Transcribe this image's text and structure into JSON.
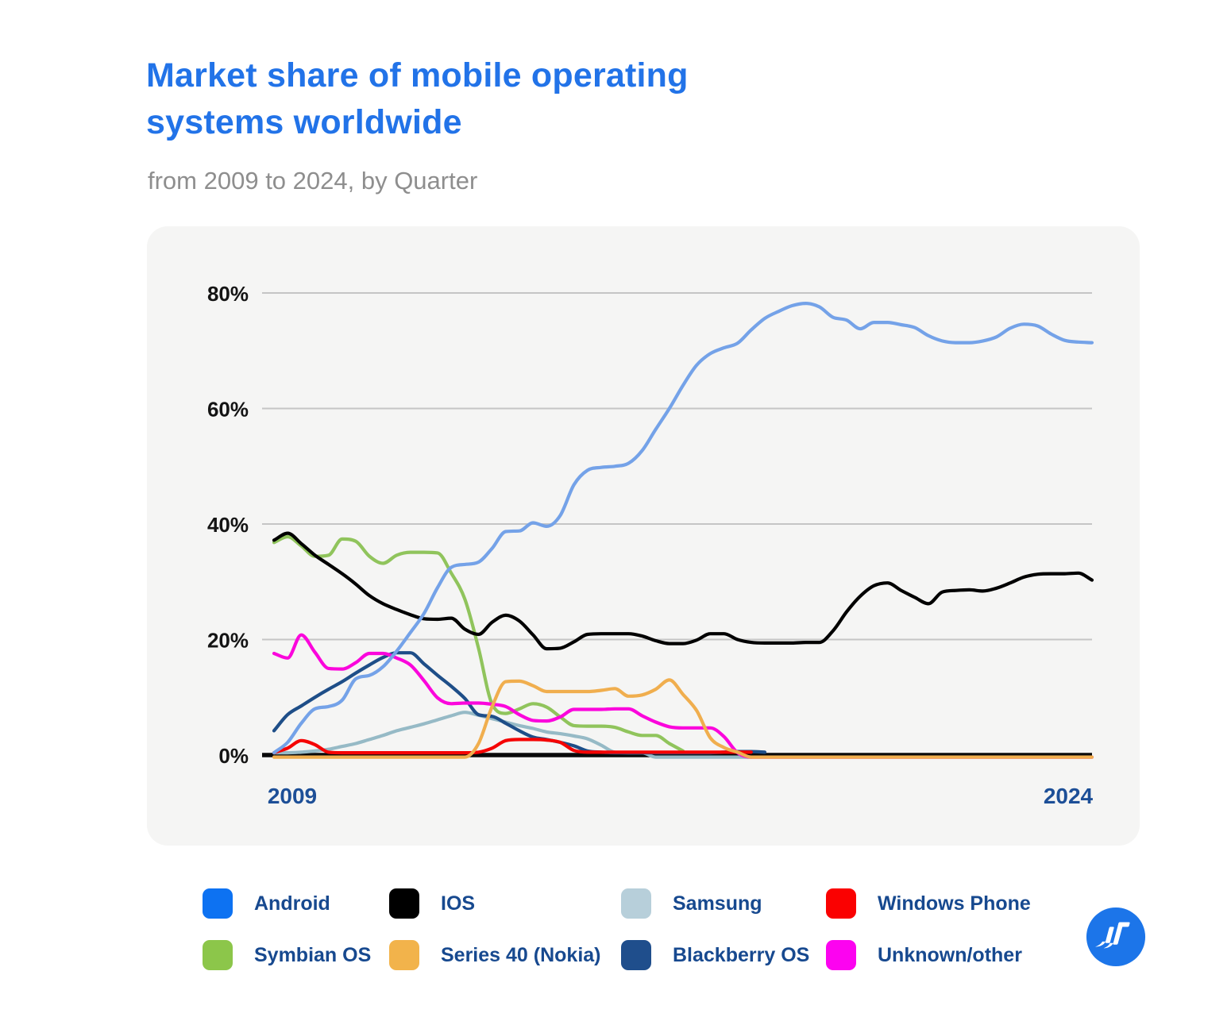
{
  "header": {
    "title_line1": "Market share of mobile operating",
    "title_line2": "systems worldwide",
    "subtitle": "from 2009 to 2024, by Quarter"
  },
  "chart_data": {
    "type": "line",
    "title": "Market share of mobile operating systems worldwide",
    "subtitle": "from 2009 to 2024, by Quarter",
    "x": {
      "unit": "quarter",
      "start": "2009 Q1",
      "end": "2024 Q1",
      "points_per_year": 4,
      "axis_labels": [
        "2009",
        "2024"
      ]
    },
    "y": {
      "unit": "percent market share",
      "ticks": [
        "80%",
        "60%",
        "40%",
        "20%",
        "0%"
      ],
      "tick_values": [
        80,
        60,
        40,
        20,
        0
      ],
      "ylim": [
        0,
        84
      ],
      "grid": true
    },
    "legend_position": "bottom",
    "series": [
      {
        "name": "Android",
        "line_color": "#74A2E8",
        "swatch_color": "#0D72F2",
        "values": [
          0.4,
          2.2,
          5.5,
          8.0,
          8.4,
          9.5,
          13.2,
          13.8,
          15.3,
          18.0,
          21.2,
          24.5,
          29.0,
          32.5,
          33.0,
          33.4,
          35.8,
          38.7,
          38.8,
          40.2,
          39.6,
          41.5,
          46.8,
          49.3,
          49.8,
          50.0,
          50.5,
          52.7,
          56.4,
          60.0,
          64.0,
          67.5,
          69.5,
          70.5,
          71.3,
          73.6,
          75.6,
          76.8,
          77.8,
          78.2,
          77.6,
          75.8,
          75.3,
          73.8,
          74.9,
          74.9,
          74.5,
          74.0,
          72.6,
          71.7,
          71.4,
          71.4,
          71.7,
          72.4,
          73.9,
          74.6,
          74.3,
          72.9,
          71.8,
          71.5,
          71.4
        ]
      },
      {
        "name": "IOS",
        "line_color": "#000000",
        "swatch_color": "#000000",
        "values": [
          37.2,
          38.4,
          36.6,
          34.6,
          33.0,
          31.4,
          29.6,
          27.6,
          26.2,
          25.2,
          24.3,
          23.6,
          23.5,
          23.7,
          21.8,
          20.9,
          23.0,
          24.2,
          23.2,
          20.8,
          18.4,
          18.5,
          19.6,
          20.9,
          21.0,
          21.0,
          21.0,
          20.6,
          19.8,
          19.3,
          19.3,
          19.9,
          21.0,
          21.0,
          20.0,
          19.5,
          19.4,
          19.4,
          19.4,
          19.5,
          19.5,
          21.5,
          24.8,
          27.5,
          29.3,
          29.8,
          28.5,
          27.3,
          26.2,
          28.2,
          28.5,
          28.6,
          28.4,
          28.9,
          29.8,
          30.8,
          31.3,
          31.4,
          31.4,
          31.5,
          30.3
        ]
      },
      {
        "name": "Samsung",
        "line_color": "#96BAC6",
        "swatch_color": "#B7CFDA",
        "values": [
          0.4,
          0.4,
          0.5,
          0.7,
          1.0,
          1.5,
          2.0,
          2.7,
          3.4,
          4.2,
          4.8,
          5.4,
          6.1,
          6.8,
          7.4,
          6.9,
          6.3,
          5.7,
          5.1,
          4.6,
          4.0,
          3.7,
          3.3,
          2.8,
          1.7,
          0.5,
          0.4,
          0.4,
          0.2,
          0.2,
          0.2,
          0.2,
          0.1,
          0.1,
          0.1,
          0.1
        ]
      },
      {
        "name": "Windows Phone",
        "line_color": "#F50404",
        "swatch_color": "#FA0101",
        "values": [
          0.4,
          1.2,
          2.5,
          1.8,
          0.5,
          0.4,
          0.4,
          0.4,
          0.4,
          0.4,
          0.4,
          0.4,
          0.4,
          0.4,
          0.4,
          0.5,
          1.2,
          2.5,
          2.7,
          2.7,
          2.6,
          2.2,
          0.8,
          0.5,
          0.5,
          0.5,
          0.5,
          0.5,
          0.5,
          0.5,
          0.5,
          0.5,
          0.5,
          0.5,
          0.5,
          0.5
        ]
      },
      {
        "name": "Symbian OS",
        "line_color": "#90C45C",
        "swatch_color": "#8CC64A",
        "values": [
          36.8,
          37.8,
          36.2,
          34.4,
          34.6,
          37.4,
          37.0,
          34.4,
          33.2,
          34.6,
          35.1,
          35.1,
          35.0,
          31.5,
          27.0,
          18.5,
          8.8,
          7.2,
          8.0,
          8.9,
          8.3,
          6.6,
          5.1,
          5.0,
          5.0,
          4.8,
          4.0,
          3.4,
          3.4,
          2.0,
          0.7
        ]
      },
      {
        "name": "Series 40 (Nokia)",
        "line_color": "#F0AE4E",
        "swatch_color": "#F2B34B",
        "values": [
          0.1,
          0.1,
          0.1,
          0.1,
          0.1,
          0.1,
          0.1,
          0.1,
          0.1,
          0.1,
          0.1,
          0.1,
          0.1,
          0.1,
          0.2,
          2.0,
          8.4,
          12.7,
          12.8,
          12.0,
          11.0,
          11.0,
          11.0,
          11.0,
          11.2,
          11.5,
          10.2,
          10.4,
          11.4,
          13.0,
          10.5,
          7.7,
          3.0,
          1.3,
          0.5,
          0.3,
          0.2,
          0.2,
          0.2,
          0.2,
          0.2,
          0.2,
          0.2,
          0.2,
          0.2,
          0.2,
          0.2,
          0.2,
          0.2,
          0.2,
          0.2,
          0.2,
          0.2,
          0.2,
          0.2,
          0.2,
          0.2,
          0.2,
          0.2,
          0.2,
          0.2
        ]
      },
      {
        "name": "Blackberry OS",
        "line_color": "#1E4E88",
        "swatch_color": "#1F4E8C",
        "values": [
          4.2,
          7.0,
          8.5,
          10.0,
          11.4,
          12.7,
          14.2,
          15.6,
          16.9,
          17.7,
          17.7,
          15.8,
          13.8,
          11.9,
          9.8,
          7.0,
          6.7,
          5.5,
          4.2,
          3.1,
          2.7,
          2.2,
          1.6,
          0.7,
          0.5,
          0.4,
          0.4,
          0.4,
          0.4,
          0.4,
          0.4,
          0.4,
          0.4,
          0.5,
          0.6,
          0.6,
          0.5
        ]
      },
      {
        "name": "Unknown/other",
        "line_color": "#FB06DC",
        "swatch_color": "#FC03F0",
        "values": [
          17.6,
          16.8,
          20.8,
          17.8,
          15.0,
          14.9,
          16.0,
          17.6,
          17.6,
          16.8,
          15.6,
          12.9,
          9.9,
          8.9,
          9.0,
          9.0,
          8.8,
          8.4,
          7.0,
          6.0,
          5.9,
          6.6,
          7.9,
          7.9,
          7.9,
          8.0,
          8.0,
          6.8,
          5.7,
          4.9,
          4.7,
          4.7,
          4.7,
          3.2,
          0.4,
          0.3,
          0.3,
          0.3,
          0.3,
          0.3,
          0.3,
          0.3,
          0.3,
          0.3,
          0.3,
          0.3,
          0.3,
          0.3,
          0.3,
          0.3,
          0.3,
          0.3,
          0.3,
          0.3,
          0.3,
          0.3,
          0.3,
          0.3,
          0.3,
          0.3,
          0.3
        ]
      }
    ],
    "draw_order": [
      "Samsung",
      "Blackberry OS",
      "Symbian OS",
      "Windows Phone",
      "Unknown/other",
      "Series 40 (Nokia)",
      "IOS",
      "Android"
    ]
  },
  "logo": {
    "bg_color": "#1C75E9"
  }
}
